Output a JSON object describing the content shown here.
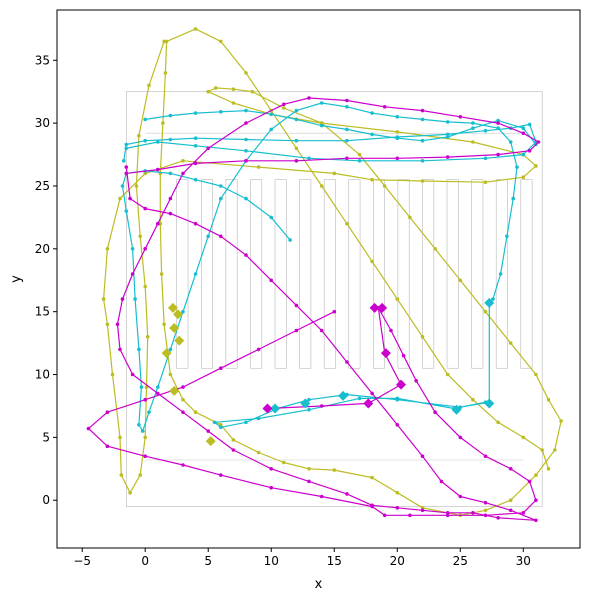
{
  "chart_data": {
    "type": "line",
    "title": "",
    "xlabel": "x",
    "ylabel": "y",
    "xlim": [
      -7,
      34.5
    ],
    "ylim": [
      -3.8,
      39
    ],
    "xticks": [
      -5,
      0,
      5,
      10,
      15,
      20,
      25,
      30
    ],
    "yticks": [
      0,
      5,
      10,
      15,
      20,
      25,
      30,
      35
    ],
    "grid": false,
    "legend": false,
    "background": "store floor plan",
    "series": [
      {
        "color": "#bcbd22",
        "points": [
          [
            1.5,
            36.5
          ],
          [
            0.3,
            33
          ],
          [
            -0.5,
            29
          ],
          [
            -0.7,
            25
          ],
          [
            -0.4,
            21
          ],
          [
            0,
            17
          ],
          [
            0.2,
            13
          ],
          [
            0.1,
            9
          ],
          [
            0,
            5
          ],
          [
            -0.4,
            2
          ],
          [
            -1.2,
            0.6
          ],
          [
            -1.9,
            2
          ],
          [
            -2,
            5
          ],
          [
            -2.6,
            10
          ],
          [
            -3,
            14
          ],
          [
            -3.3,
            16
          ],
          [
            -3,
            20
          ],
          [
            -2,
            24
          ],
          [
            0,
            26
          ],
          [
            3,
            27
          ],
          [
            9,
            26.5
          ],
          [
            15,
            26
          ],
          [
            18,
            25.5
          ],
          [
            22,
            25.4
          ],
          [
            27,
            25.3
          ],
          [
            30,
            25.7
          ],
          [
            31,
            26.6
          ],
          [
            30,
            27.5
          ],
          [
            26,
            28.5
          ],
          [
            20,
            29.3
          ],
          [
            14,
            30
          ],
          [
            10,
            30.7
          ],
          [
            7,
            31.6
          ],
          [
            5,
            32.5
          ],
          [
            5.6,
            32.8
          ],
          [
            7,
            32.7
          ],
          [
            8.5,
            32.5
          ],
          [
            11,
            31.2
          ],
          [
            14,
            30
          ],
          [
            17,
            27.5
          ],
          [
            19,
            25
          ],
          [
            21,
            22.5
          ],
          [
            23,
            20
          ],
          [
            25,
            17.5
          ],
          [
            27,
            15
          ],
          [
            29,
            12.5
          ],
          [
            31,
            10
          ],
          [
            32,
            8
          ],
          [
            33,
            6.3
          ],
          [
            32.5,
            4
          ],
          [
            31,
            2
          ],
          [
            29,
            0
          ],
          [
            27,
            -0.8
          ],
          [
            25,
            -1.2
          ],
          [
            22,
            -0.6
          ],
          [
            20,
            0.6
          ],
          [
            18,
            1.8
          ],
          [
            15,
            2.4
          ],
          [
            13,
            2.5
          ],
          [
            11,
            3
          ],
          [
            9,
            3.8
          ],
          [
            7,
            4.8
          ],
          [
            6,
            6
          ],
          [
            4,
            7
          ],
          [
            3,
            8
          ],
          [
            2,
            10
          ],
          [
            1.5,
            14
          ],
          [
            1.3,
            18
          ],
          [
            1.2,
            22
          ],
          [
            1.2,
            26
          ],
          [
            1.4,
            30
          ],
          [
            1.6,
            34
          ],
          [
            1.7,
            36.5
          ],
          [
            4,
            37.5
          ],
          [
            6,
            36.5
          ],
          [
            8,
            34
          ],
          [
            10,
            31
          ],
          [
            12,
            28
          ],
          [
            14,
            25
          ],
          [
            16,
            22
          ],
          [
            18,
            19
          ],
          [
            20,
            16
          ],
          [
            22,
            13
          ],
          [
            24,
            10
          ],
          [
            26,
            8
          ],
          [
            28,
            6.2
          ],
          [
            30,
            5
          ],
          [
            31.5,
            4
          ],
          [
            32,
            2.5
          ]
        ]
      },
      {
        "color": "#17becf",
        "points": [
          [
            11.5,
            20.7
          ],
          [
            10,
            22.5
          ],
          [
            8,
            24
          ],
          [
            6,
            25
          ],
          [
            4,
            25.5
          ],
          [
            2,
            26
          ],
          [
            0,
            26.2
          ],
          [
            -1.5,
            26
          ],
          [
            -1.8,
            25
          ],
          [
            -1.5,
            23
          ],
          [
            -1,
            20
          ],
          [
            -0.8,
            16
          ],
          [
            -0.5,
            12
          ],
          [
            -0.3,
            9
          ],
          [
            -0.5,
            6
          ],
          [
            -0.2,
            5.5
          ],
          [
            0.3,
            7
          ],
          [
            1,
            9
          ],
          [
            2,
            12
          ],
          [
            3,
            15
          ],
          [
            4,
            18
          ],
          [
            5,
            21
          ],
          [
            6,
            24
          ],
          [
            8,
            27
          ],
          [
            10,
            29.5
          ],
          [
            12,
            31
          ],
          [
            14,
            31.6
          ],
          [
            16,
            31.3
          ],
          [
            18,
            30.8
          ],
          [
            20,
            30.5
          ],
          [
            22,
            30.3
          ],
          [
            24,
            30.1
          ],
          [
            26,
            30
          ],
          [
            28,
            29.6
          ],
          [
            29,
            28.5
          ],
          [
            29.5,
            26.5
          ],
          [
            29.2,
            24
          ],
          [
            28.7,
            21
          ],
          [
            28.2,
            18
          ],
          [
            27.6,
            16
          ],
          [
            27.3,
            15.8
          ],
          [
            27.3,
            7.8
          ],
          [
            25,
            7.4
          ],
          [
            20,
            8
          ],
          [
            16,
            8.4
          ],
          [
            13,
            8
          ],
          [
            10.5,
            7.3
          ],
          [
            8,
            6.2
          ],
          [
            6,
            5.8
          ],
          [
            5.5,
            6.2
          ],
          [
            9,
            6.5
          ],
          [
            13,
            7.2
          ],
          [
            17,
            8.1
          ],
          [
            20,
            8.1
          ],
          [
            24.5,
            7.3
          ],
          [
            27,
            7.8
          ]
        ]
      },
      {
        "color": "#17becf",
        "points": [
          [
            -1.7,
            27
          ],
          [
            -1.5,
            28.3
          ],
          [
            0,
            28.6
          ],
          [
            2,
            28.7
          ],
          [
            4,
            28.8
          ],
          [
            8,
            28.7
          ],
          [
            12,
            28.6
          ],
          [
            16,
            28.6
          ],
          [
            20,
            28.9
          ],
          [
            24,
            29.1
          ],
          [
            27,
            29.4
          ],
          [
            29,
            29.6
          ],
          [
            30.5,
            29.9
          ],
          [
            31,
            28.5
          ],
          [
            30,
            27.5
          ],
          [
            27,
            27.2
          ],
          [
            22,
            27
          ],
          [
            17,
            27
          ],
          [
            13,
            27.2
          ],
          [
            8,
            27.8
          ],
          [
            4,
            28.2
          ],
          [
            1,
            28.5
          ],
          [
            -1.5,
            28
          ]
        ]
      },
      {
        "color": "#17becf",
        "points": [
          [
            0,
            30.3
          ],
          [
            2,
            30.6
          ],
          [
            4,
            30.8
          ],
          [
            6,
            30.9
          ],
          [
            8,
            31
          ],
          [
            10,
            30.7
          ],
          [
            12,
            30.3
          ],
          [
            14,
            29.8
          ],
          [
            16,
            29.5
          ],
          [
            18,
            29.1
          ],
          [
            20,
            28.8
          ],
          [
            22,
            28.6
          ],
          [
            24,
            28.9
          ],
          [
            26,
            29.6
          ],
          [
            28,
            30.2
          ],
          [
            30,
            29.6
          ],
          [
            31,
            28.3
          ]
        ]
      },
      {
        "color": "#cc00cc",
        "points": [
          [
            -1.5,
            26.5
          ],
          [
            -1.2,
            24
          ],
          [
            0,
            23.2
          ],
          [
            2,
            22.8
          ],
          [
            4,
            22
          ],
          [
            6,
            21
          ],
          [
            8,
            19.5
          ],
          [
            10,
            17.5
          ],
          [
            12,
            15.5
          ],
          [
            14,
            13.5
          ],
          [
            16,
            11
          ],
          [
            18,
            8.5
          ],
          [
            20,
            6
          ],
          [
            22,
            3.5
          ],
          [
            23.5,
            1.5
          ],
          [
            25,
            0.3
          ],
          [
            27,
            -0.2
          ],
          [
            29,
            -0.8
          ],
          [
            31,
            -1.6
          ],
          [
            28,
            -1.4
          ],
          [
            26,
            -1
          ],
          [
            24,
            -1
          ],
          [
            22,
            -0.8
          ],
          [
            20,
            -0.6
          ],
          [
            18,
            -0.4
          ],
          [
            16,
            0.5
          ],
          [
            13,
            1.5
          ],
          [
            10,
            2.5
          ],
          [
            7,
            4
          ],
          [
            5,
            5.5
          ],
          [
            3,
            7
          ],
          [
            1,
            8.5
          ],
          [
            -1,
            10
          ],
          [
            -2,
            12
          ],
          [
            -2.2,
            14
          ],
          [
            -1.8,
            16
          ],
          [
            -1,
            18
          ],
          [
            0,
            20
          ],
          [
            1,
            22
          ],
          [
            2,
            24
          ],
          [
            3,
            26
          ],
          [
            5,
            28
          ],
          [
            8,
            30
          ],
          [
            11,
            31.5
          ],
          [
            13,
            32
          ],
          [
            16,
            31.8
          ],
          [
            19,
            31.3
          ],
          [
            22,
            31
          ],
          [
            25,
            30.5
          ],
          [
            28,
            30
          ],
          [
            30,
            29.2
          ],
          [
            31.2,
            28.5
          ],
          [
            30.5,
            27.8
          ],
          [
            28,
            27.5
          ],
          [
            24,
            27.3
          ],
          [
            20,
            27.2
          ],
          [
            16,
            27.2
          ],
          [
            12,
            27
          ],
          [
            8,
            27
          ],
          [
            4,
            26.8
          ],
          [
            1,
            26.3
          ],
          [
            -1.5,
            26
          ]
        ]
      },
      {
        "color": "#cc00cc",
        "points": [
          [
            18.5,
            15.3
          ],
          [
            19.5,
            13.5
          ],
          [
            20.5,
            11.5
          ],
          [
            21.5,
            9.5
          ],
          [
            23,
            7
          ],
          [
            25,
            5
          ],
          [
            27,
            3.5
          ],
          [
            29,
            2.5
          ],
          [
            30.5,
            1.5
          ],
          [
            31,
            0
          ],
          [
            30,
            -1
          ],
          [
            27,
            -1.2
          ],
          [
            24,
            -1.2
          ],
          [
            21,
            -1.2
          ],
          [
            19,
            -1.2
          ],
          [
            18,
            -0.5
          ],
          [
            14,
            0.3
          ],
          [
            10,
            1
          ],
          [
            6,
            2
          ],
          [
            3,
            2.8
          ],
          [
            0,
            3.5
          ],
          [
            -3,
            4.3
          ],
          [
            -4.5,
            5.7
          ],
          [
            -3,
            7
          ],
          [
            0,
            8
          ],
          [
            3,
            9
          ],
          [
            6,
            10.5
          ],
          [
            9,
            12
          ],
          [
            12,
            13.5
          ],
          [
            15,
            15
          ]
        ]
      },
      {
        "color": "#cc00cc",
        "points": [
          [
            18.5,
            15.3
          ],
          [
            19,
            11.7
          ],
          [
            20.3,
            9.2
          ],
          [
            17.7,
            7.7
          ],
          [
            14,
            7.5
          ],
          [
            9.7,
            7.3
          ]
        ]
      }
    ],
    "markers": [
      {
        "color": "#bcbd22",
        "points": [
          [
            2.2,
            15.3
          ],
          [
            2.6,
            14.8
          ],
          [
            2.3,
            13.7
          ],
          [
            2.7,
            12.7
          ],
          [
            1.7,
            11.7
          ],
          [
            2.3,
            8.7
          ],
          [
            5.2,
            4.7
          ]
        ]
      },
      {
        "color": "#17becf",
        "points": [
          [
            27.3,
            15.7
          ],
          [
            27.3,
            7.7
          ],
          [
            24.7,
            7.2
          ],
          [
            15.7,
            8.3
          ],
          [
            12.7,
            7.7
          ],
          [
            10.3,
            7.3
          ]
        ]
      },
      {
        "color": "#cc00cc",
        "points": [
          [
            18.2,
            15.3
          ],
          [
            18.8,
            15.3
          ],
          [
            19.1,
            11.7
          ],
          [
            20.3,
            9.2
          ],
          [
            17.7,
            7.7
          ],
          [
            9.7,
            7.3
          ]
        ]
      }
    ]
  }
}
